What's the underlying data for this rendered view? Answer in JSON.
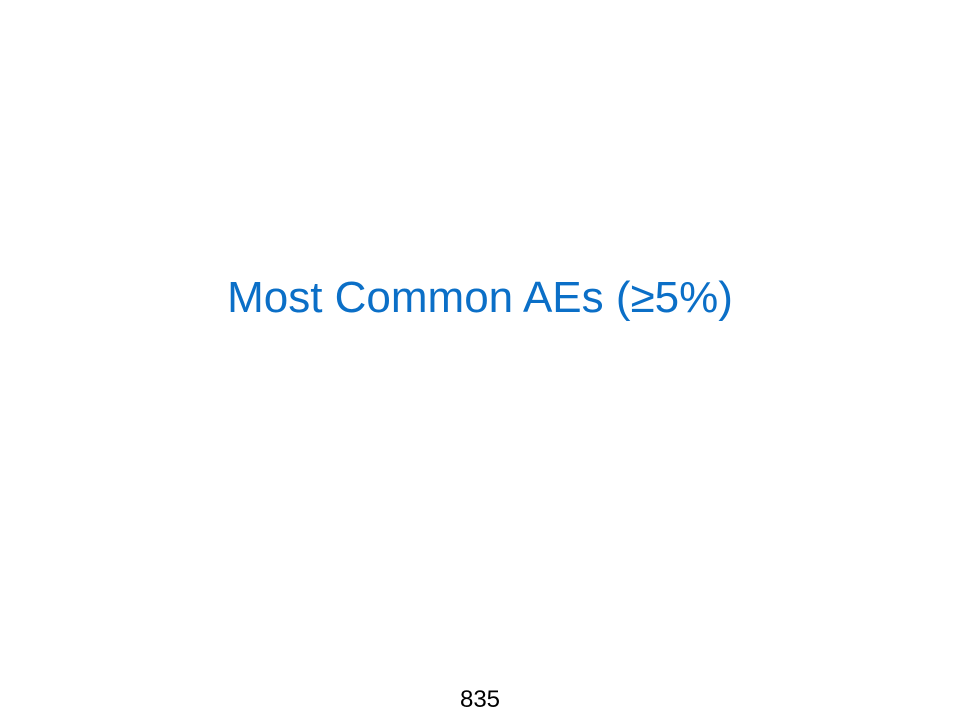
{
  "slide": {
    "title": "Most Common AEs (≥5%)",
    "page_number": "835"
  },
  "colors": {
    "title": "#0b6fc7",
    "page_number": "#000000",
    "background": "#ffffff"
  }
}
